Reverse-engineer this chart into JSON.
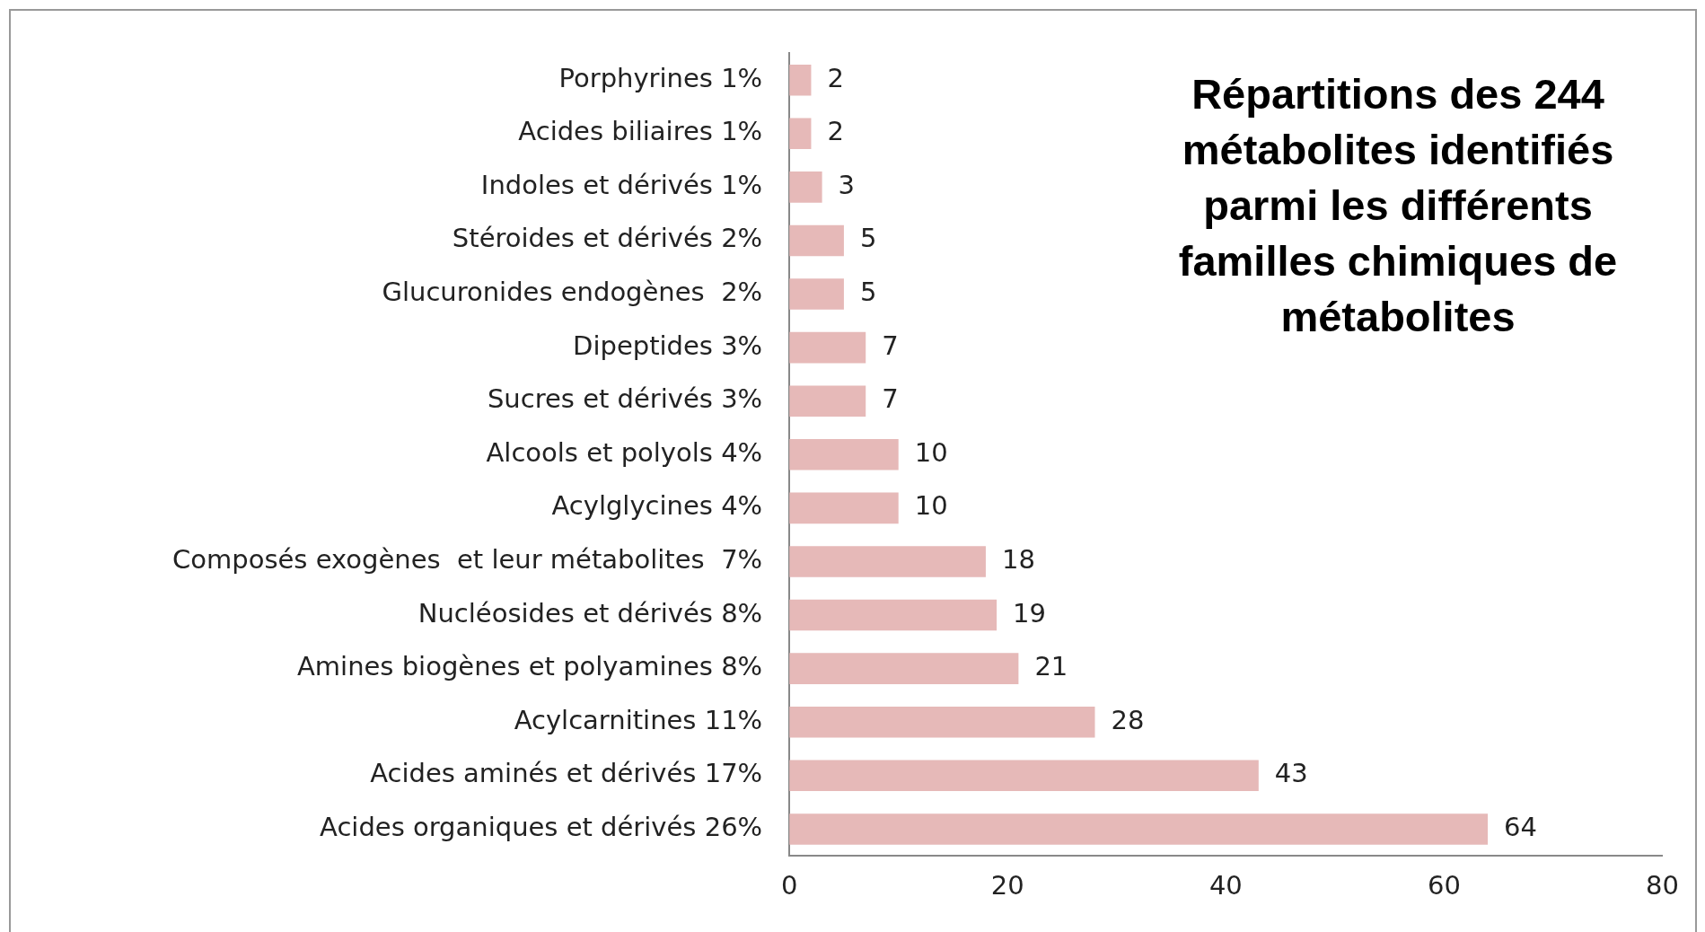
{
  "chart_data": {
    "type": "bar",
    "orientation": "horizontal",
    "title": "Répartitions des 244 métabolites identifiés parmi les différents familles chimiques de métabolites",
    "categories": [
      "Porphyrines 1%",
      "Acides biliaires 1%",
      "Indoles et dérivés 1%",
      "Stéroides et dérivés 2%",
      "Glucuronides endogènes  2%",
      "Dipeptides 3%",
      "Sucres et dérivés 3%",
      "Alcools et polyols 4%",
      "Acylglycines 4%",
      "Composés exogènes  et leur métabolites  7%",
      "Nucléosides et dérivés 8%",
      "Amines biogènes et polyamines 8%",
      "Acylcarnitines 11%",
      "Acides aminés et dérivés 17%",
      "Acides organiques et dérivés 26%"
    ],
    "values": [
      2,
      2,
      3,
      5,
      5,
      7,
      7,
      10,
      10,
      18,
      19,
      21,
      28,
      43,
      64
    ],
    "color": "#e6b9b8",
    "data_labels": true,
    "xlim": [
      0,
      80
    ],
    "xticks": [
      0,
      20,
      40,
      60,
      80
    ],
    "grid": false,
    "legend": false
  }
}
